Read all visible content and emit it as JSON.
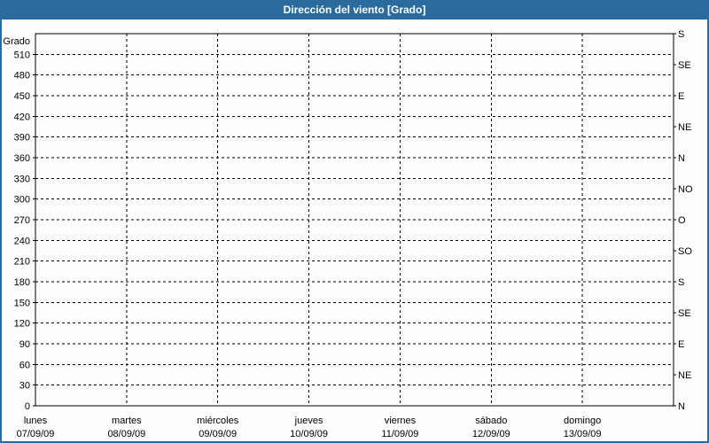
{
  "window": {
    "title": "Dirección del viento [Grado]"
  },
  "colors": {
    "titlebar_bg": "#2b6a9d",
    "titlebar_text": "#ffffff",
    "frame_border": "#2b6a9d",
    "chart_bg": "#fdfdfc",
    "grid": "#000000",
    "label_text": "#000000"
  },
  "chart_data": {
    "type": "line",
    "title": "Dirección del viento [Grado]",
    "ylabel": "Grado",
    "ylim": [
      0,
      540
    ],
    "grid": true,
    "legend": "none",
    "y_axis": {
      "label": "Grado",
      "min": 0,
      "max": 540,
      "tick_step": 30,
      "ticks": [
        0,
        30,
        60,
        90,
        120,
        150,
        180,
        210,
        240,
        270,
        300,
        330,
        360,
        390,
        420,
        450,
        480,
        510
      ]
    },
    "right_axis": {
      "unit": "compass",
      "tick_step_deg": 45,
      "labels": [
        {
          "deg": 540,
          "label": "S"
        },
        {
          "deg": 495,
          "label": "SE"
        },
        {
          "deg": 450,
          "label": "E"
        },
        {
          "deg": 405,
          "label": "NE"
        },
        {
          "deg": 360,
          "label": "N"
        },
        {
          "deg": 315,
          "label": "NO"
        },
        {
          "deg": 270,
          "label": "O"
        },
        {
          "deg": 225,
          "label": "SO"
        },
        {
          "deg": 180,
          "label": "S"
        },
        {
          "deg": 135,
          "label": "SE"
        },
        {
          "deg": 90,
          "label": "E"
        },
        {
          "deg": 45,
          "label": "NE"
        },
        {
          "deg": 0,
          "label": "N"
        }
      ]
    },
    "x_axis": {
      "categories": [
        {
          "day": "lunes",
          "date": "07/09/09"
        },
        {
          "day": "martes",
          "date": "08/09/09"
        },
        {
          "day": "miércoles",
          "date": "09/09/09"
        },
        {
          "day": "jueves",
          "date": "10/09/09"
        },
        {
          "day": "viernes",
          "date": "11/09/09"
        },
        {
          "day": "sábado",
          "date": "12/09/09"
        },
        {
          "day": "domingo",
          "date": "13/09/09"
        }
      ]
    },
    "series": []
  }
}
